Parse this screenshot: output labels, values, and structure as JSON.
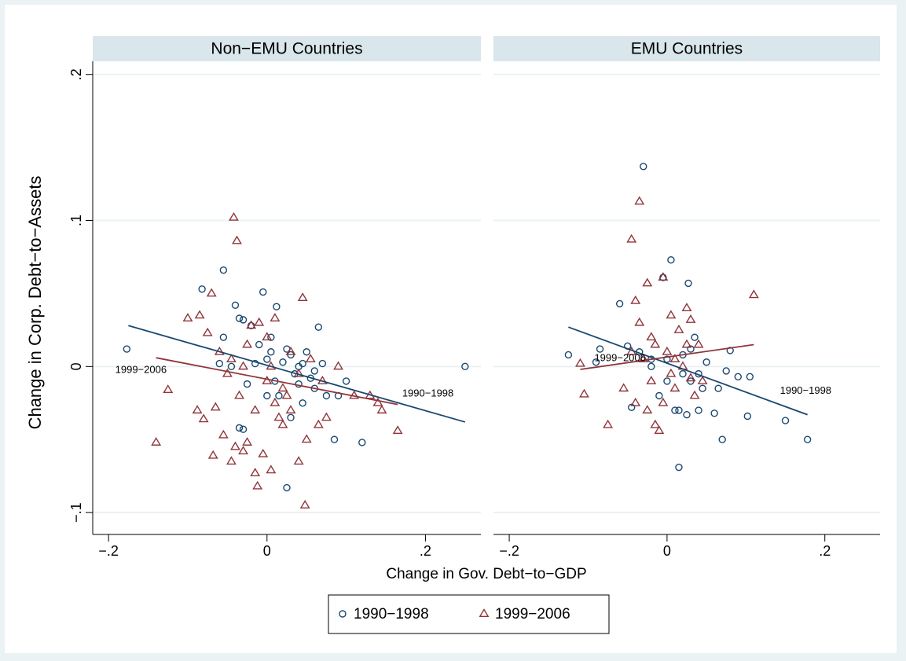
{
  "chart_data": [
    {
      "type": "scatter",
      "title": "Non−EMU Countries",
      "x_label": "Change in Gov. Debt−to−GDP",
      "y_label": "Change in Corp. Debt−to−Assets",
      "xlim": [
        -0.22,
        0.27
      ],
      "ylim": [
        -0.115,
        0.209
      ],
      "xticks": [
        {
          "value": -0.2,
          "label": "−.2"
        },
        0,
        {
          "value": 0.2,
          "label": ".2"
        }
      ],
      "yticks": [
        {
          "value": -0.1,
          "label": "−.1"
        },
        0,
        {
          "value": 0.1,
          "label": ".1"
        },
        {
          "value": 0.2,
          "label": ".2"
        }
      ],
      "grid": true,
      "legend": "bottom",
      "series": [
        {
          "name": "1990−1998",
          "color": "#1a476f",
          "marker": "circle",
          "x": [
            -0.177,
            -0.082,
            -0.055,
            -0.04,
            -0.035,
            -0.03,
            -0.005,
            0.012,
            -0.055,
            -0.06,
            -0.045,
            -0.035,
            -0.03,
            -0.02,
            -0.01,
            0.0,
            0.005,
            0.01,
            0.02,
            0.025,
            0.03,
            0.035,
            0.04,
            0.045,
            0.05,
            0.055,
            0.06,
            0.065,
            0.07,
            0.075,
            0.085,
            0.09,
            0.1,
            0.12,
            0.025,
            0.25,
            0.03,
            0.045,
            -0.025,
            -0.015,
            0.015,
            0.005,
            0.0,
            0.04,
            0.06
          ],
          "values": [
            0.012,
            0.053,
            0.066,
            0.042,
            0.033,
            0.032,
            0.051,
            0.041,
            0.02,
            0.002,
            0.0,
            -0.042,
            -0.043,
            0.028,
            0.015,
            0.005,
            0.02,
            -0.01,
            0.003,
            0.012,
            0.008,
            -0.005,
            -0.012,
            0.002,
            0.01,
            -0.008,
            -0.015,
            0.027,
            0.002,
            -0.02,
            -0.05,
            -0.02,
            -0.01,
            -0.052,
            -0.083,
            0.0,
            -0.035,
            -0.025,
            -0.012,
            0.002,
            -0.02,
            0.01,
            -0.02,
            0.0,
            -0.003
          ],
          "fit": {
            "x": [
              -0.175,
              0.25
            ],
            "values": [
              0.028,
              -0.038
            ]
          }
        },
        {
          "name": "1999−2006",
          "color": "#90353b",
          "marker": "triangle",
          "x": [
            -0.14,
            -0.125,
            -0.1,
            -0.085,
            -0.088,
            -0.08,
            -0.075,
            -0.07,
            -0.068,
            -0.065,
            -0.055,
            -0.045,
            -0.04,
            -0.042,
            -0.038,
            -0.03,
            -0.025,
            -0.015,
            -0.012,
            -0.005,
            0.005,
            0.015,
            0.02,
            0.03,
            0.045,
            0.04,
            0.048,
            0.05,
            0.065,
            0.075,
            0.09,
            0.11,
            0.13,
            0.14,
            0.145,
            0.165,
            -0.06,
            -0.05,
            -0.03,
            -0.02,
            -0.01,
            0.0,
            0.01,
            0.02,
            0.03,
            -0.035,
            -0.025,
            0.0,
            0.01,
            0.04,
            0.055,
            0.07,
            -0.015,
            0.025,
            -0.045,
            0.005
          ],
          "values": [
            -0.052,
            -0.016,
            0.033,
            0.035,
            -0.03,
            -0.036,
            0.023,
            0.05,
            -0.061,
            -0.028,
            -0.047,
            -0.065,
            -0.055,
            0.102,
            0.086,
            -0.058,
            -0.052,
            -0.073,
            -0.082,
            -0.06,
            -0.071,
            -0.035,
            -0.04,
            -0.03,
            0.047,
            -0.065,
            -0.095,
            -0.05,
            -0.04,
            -0.035,
            0.0,
            -0.02,
            -0.02,
            -0.025,
            -0.03,
            -0.044,
            0.01,
            -0.005,
            0.0,
            0.028,
            0.03,
            -0.01,
            0.033,
            -0.015,
            0.01,
            -0.02,
            0.015,
            0.02,
            -0.025,
            -0.005,
            0.005,
            -0.01,
            -0.03,
            -0.02,
            0.005,
            0.0
          ],
          "fit": {
            "x": [
              -0.14,
              0.165
            ],
            "values": [
              0.006,
              -0.026
            ]
          }
        }
      ]
    },
    {
      "type": "scatter",
      "title": "EMU Countries",
      "xlim": [
        -0.22,
        0.27
      ],
      "ylim": [
        -0.115,
        0.209
      ],
      "xticks": [
        {
          "value": -0.2,
          "label": "−.2"
        },
        0,
        {
          "value": 0.2,
          "label": ".2"
        }
      ],
      "yticks": [
        -0.1,
        0,
        0.1,
        0.2
      ],
      "grid": true,
      "series": [
        {
          "name": "1990−1998",
          "color": "#1a476f",
          "marker": "circle",
          "x": [
            -0.03,
            0.005,
            -0.005,
            0.027,
            -0.06,
            -0.125,
            -0.09,
            -0.085,
            -0.05,
            -0.045,
            -0.035,
            -0.02,
            -0.01,
            0.0,
            0.01,
            0.015,
            0.02,
            0.025,
            0.03,
            0.035,
            0.04,
            0.045,
            0.05,
            0.06,
            0.065,
            0.07,
            0.075,
            0.08,
            0.09,
            0.105,
            0.102,
            0.15,
            0.178,
            0.015,
            0.04,
            -0.02,
            0.0,
            0.02,
            0.03
          ],
          "values": [
            0.137,
            0.073,
            0.061,
            0.057,
            0.043,
            0.008,
            0.003,
            0.012,
            0.014,
            -0.028,
            0.01,
            0.005,
            -0.02,
            0.005,
            -0.03,
            -0.03,
            -0.005,
            -0.033,
            0.012,
            0.02,
            -0.005,
            -0.015,
            0.003,
            -0.032,
            -0.015,
            -0.05,
            -0.003,
            0.011,
            -0.007,
            -0.007,
            -0.034,
            -0.037,
            -0.05,
            -0.069,
            -0.03,
            0.0,
            -0.01,
            0.008,
            -0.01
          ],
          "fit": {
            "x": [
              -0.125,
              0.178
            ],
            "values": [
              0.027,
              -0.033
            ]
          }
        },
        {
          "name": "1999−2006",
          "color": "#90353b",
          "marker": "triangle",
          "x": [
            -0.035,
            -0.045,
            -0.025,
            -0.005,
            0.11,
            -0.04,
            -0.105,
            -0.11,
            -0.075,
            -0.055,
            -0.04,
            -0.035,
            -0.025,
            -0.015,
            -0.01,
            -0.005,
            0.005,
            0.01,
            0.015,
            0.025,
            0.03,
            0.035,
            0.04,
            0.045,
            0.0,
            -0.02,
            0.02,
            0.03,
            -0.03,
            0.01,
            -0.045,
            0.005,
            -0.015,
            0.025,
            -0.02
          ],
          "values": [
            0.113,
            0.087,
            0.057,
            0.061,
            0.049,
            0.045,
            -0.019,
            0.002,
            -0.04,
            -0.015,
            -0.025,
            0.03,
            -0.03,
            -0.04,
            -0.044,
            -0.025,
            0.035,
            -0.015,
            0.025,
            0.04,
            0.032,
            -0.02,
            0.015,
            -0.01,
            0.01,
            0.02,
            0.0,
            -0.008,
            0.005,
            0.005,
            0.01,
            -0.005,
            0.015,
            0.015,
            -0.01
          ],
          "fit": {
            "x": [
              -0.11,
              0.11
            ],
            "values": [
              -0.002,
              0.015
            ]
          }
        }
      ]
    }
  ]
}
